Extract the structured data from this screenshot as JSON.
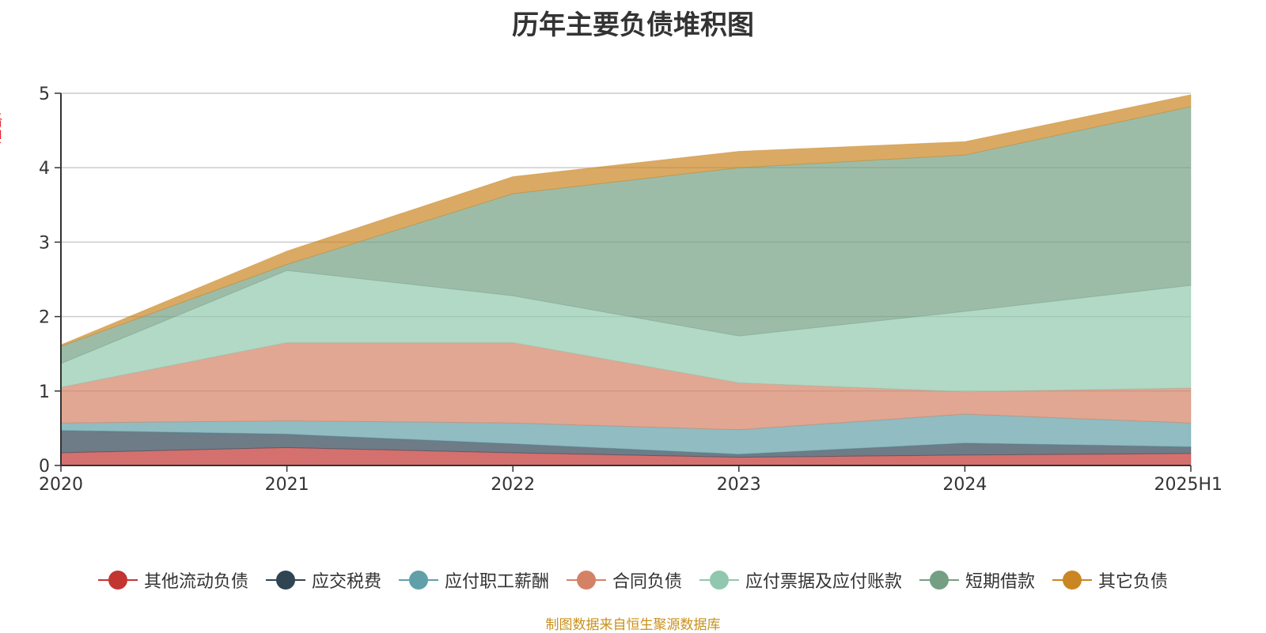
{
  "chart_data": {
    "type": "area",
    "stacked": true,
    "title": "历年主要负债堆积图",
    "unit": "(亿元)",
    "categories": [
      "2020",
      "2021",
      "2022",
      "2023",
      "2024",
      "2025H1"
    ],
    "ylim": [
      0,
      5
    ],
    "yticks": [
      "0",
      "1",
      "2",
      "3",
      "4",
      "5"
    ],
    "grid": true,
    "legend_position": "bottom",
    "series": [
      {
        "name": "其他流动负债",
        "color": "#c23531",
        "values": [
          0.17,
          0.24,
          0.17,
          0.11,
          0.14,
          0.16
        ]
      },
      {
        "name": "应交税费",
        "color": "#2f4554",
        "values": [
          0.3,
          0.18,
          0.12,
          0.04,
          0.16,
          0.09
        ]
      },
      {
        "name": "应付职工薪酬",
        "color": "#61a0a8",
        "values": [
          0.1,
          0.18,
          0.28,
          0.33,
          0.39,
          0.32
        ]
      },
      {
        "name": "合同负债",
        "color": "#d48265",
        "values": [
          0.48,
          1.05,
          1.08,
          0.63,
          0.3,
          0.47
        ]
      },
      {
        "name": "应付票据及应付账款",
        "color": "#91c7ae",
        "values": [
          0.32,
          0.97,
          0.63,
          0.63,
          1.08,
          1.38
        ]
      },
      {
        "name": "短期借款",
        "color": "#749f83",
        "values": [
          0.23,
          0.08,
          1.37,
          2.26,
          2.1,
          2.4
        ]
      },
      {
        "name": "其它负债",
        "color": "#ca8622",
        "values": [
          0.02,
          0.18,
          0.23,
          0.22,
          0.18,
          0.16
        ]
      }
    ]
  },
  "legend": {
    "items": [
      "其他流动负债",
      "应交税费",
      "应付职工薪酬",
      "合同负债",
      "应付票据及应付账款",
      "短期借款",
      "其它负债"
    ]
  },
  "footer": {
    "source": "制图数据来自恒生聚源数据库"
  }
}
